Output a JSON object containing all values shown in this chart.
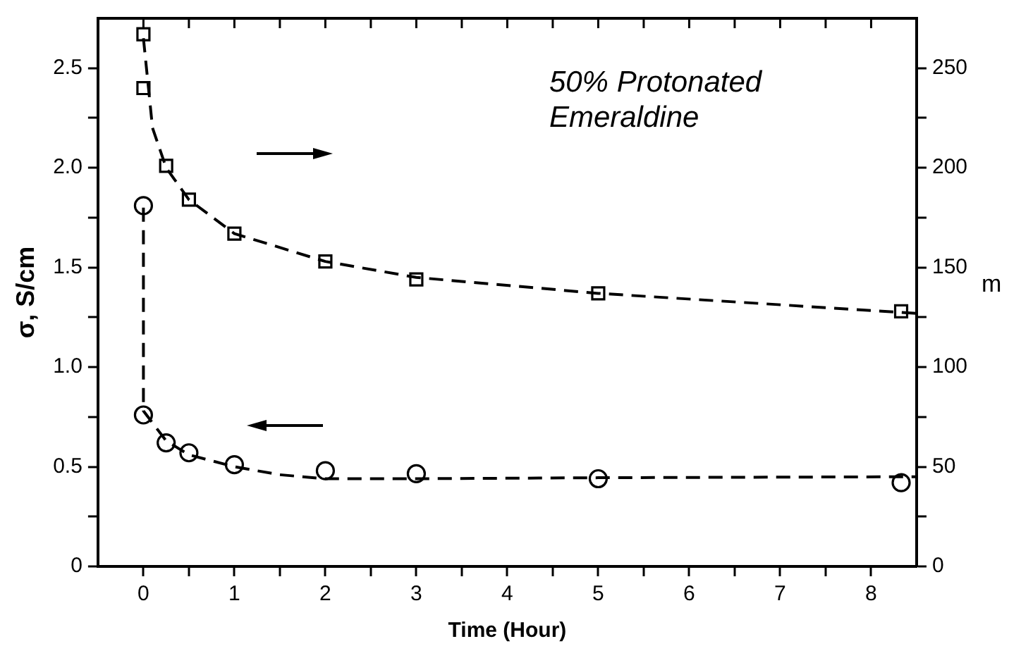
{
  "chart_data": {
    "type": "scatter",
    "xlabel": "Time (Hour)",
    "ylabel": "σ, S/cm",
    "y2label": "m",
    "annotations": [
      "50% Protonated\nEmeraldine"
    ],
    "xlim": [
      -0.5,
      8.5
    ],
    "xticks": [
      0,
      {
        "value": 0.5,
        "label": null
      },
      1,
      {
        "value": 1.5,
        "label": null
      },
      2,
      {
        "value": 2.5,
        "label": null
      },
      3,
      {
        "value": 3.5,
        "label": null
      },
      4,
      {
        "value": 4.5,
        "label": null
      },
      5,
      {
        "value": 5.5,
        "label": null
      },
      6,
      {
        "value": 6.5,
        "label": null
      },
      7,
      {
        "value": 7.5,
        "label": null
      },
      8
    ],
    "ylim": [
      0,
      2.75
    ],
    "yticks": [
      0,
      {
        "value": 0.25,
        "label": null
      },
      0.5,
      {
        "value": 0.75,
        "label": null
      },
      {
        "value": 1,
        "label": "1.0"
      },
      {
        "value": 1.25,
        "label": null
      },
      1.5,
      {
        "value": 1.75,
        "label": null
      },
      {
        "value": 2,
        "label": "2.0"
      },
      {
        "value": 2.25,
        "label": null
      },
      2.5
    ],
    "y2lim": [
      0,
      275
    ],
    "y2ticks": [
      0,
      {
        "value": 25,
        "label": null
      },
      50,
      {
        "value": 75,
        "label": null
      },
      100,
      {
        "value": 125,
        "label": null
      },
      150,
      {
        "value": 175,
        "label": null
      },
      200,
      {
        "value": 225,
        "label": null
      },
      250
    ],
    "grid": false,
    "legend": false,
    "series": [
      {
        "type": "scatter",
        "marker": "circle",
        "color": "#000000",
        "x": [
          0,
          0,
          0.25,
          0.5,
          1,
          2,
          3,
          5,
          8.33
        ],
        "values": [
          1.81,
          0.76,
          0.62,
          0.57,
          0.51,
          0.48,
          0.465,
          0.44,
          0.42
        ]
      },
      {
        "type": "line",
        "marker": "none",
        "line_style": "dashed",
        "color": "#000000",
        "x": [
          0,
          0,
          0.25,
          0.5,
          1,
          1.5,
          2,
          3,
          5,
          8.5
        ],
        "values": [
          1.8,
          0.78,
          0.63,
          0.56,
          0.5,
          0.46,
          0.44,
          0.44,
          0.445,
          0.45
        ]
      },
      {
        "type": "scatter",
        "marker": "square",
        "axis": "y2",
        "color": "#000000",
        "x": [
          0,
          0,
          0.25,
          0.5,
          1,
          2,
          3,
          5,
          8.33
        ],
        "values": [
          267,
          240,
          201,
          184,
          167,
          153,
          144,
          137,
          128
        ]
      },
      {
        "type": "line",
        "marker": "none",
        "line_style": "dashed",
        "axis": "y2",
        "color": "#000000",
        "x": [
          0,
          0.1,
          0.25,
          0.5,
          1,
          2,
          3,
          5,
          8.5
        ],
        "values": [
          265,
          220,
          200,
          184,
          167,
          153,
          145,
          137,
          127
        ]
      }
    ]
  }
}
